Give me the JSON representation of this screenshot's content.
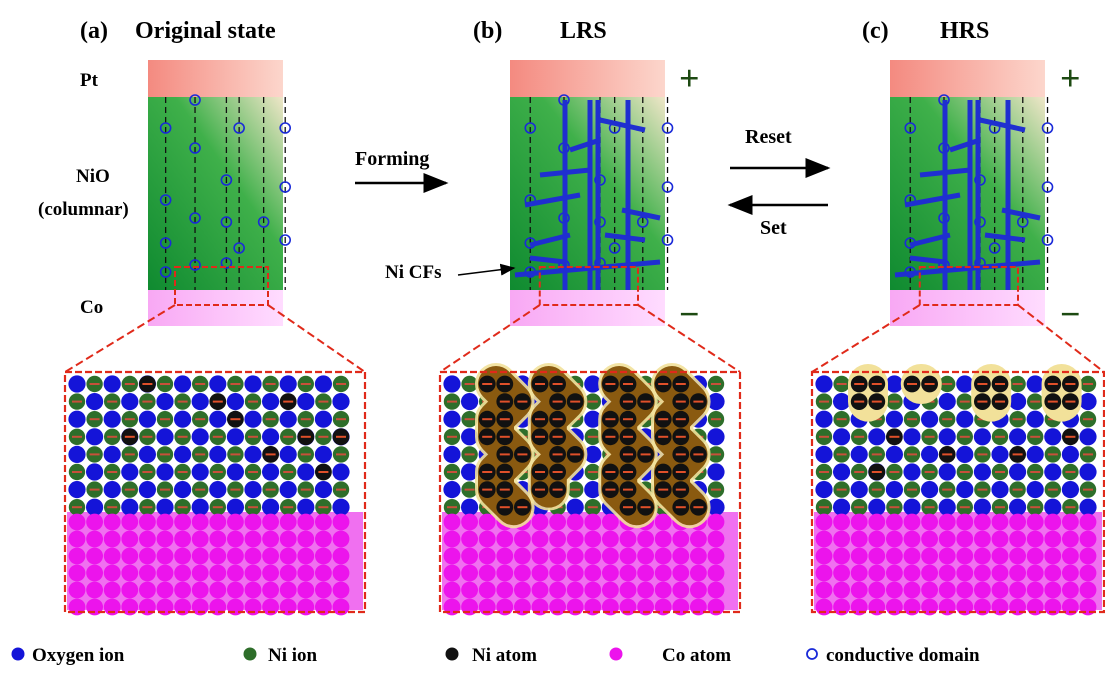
{
  "panels": [
    {
      "label": "(a)",
      "title": "Original state"
    },
    {
      "label": "(b)",
      "title": "LRS"
    },
    {
      "label": "(c)",
      "title": "HRS"
    }
  ],
  "layers": {
    "top": "Pt",
    "middle": [
      "NiO",
      "(columnar)"
    ],
    "bottom": "Co"
  },
  "transitions": {
    "forming": "Forming",
    "reset": "Reset",
    "set": "Set"
  },
  "annotation": "Ni CFs",
  "polarity": {
    "positive": "+",
    "negative": "−"
  },
  "legend": [
    "Oxygen ion",
    "Ni ion",
    "Ni atom",
    "Co atom",
    "conductive domain"
  ]
}
